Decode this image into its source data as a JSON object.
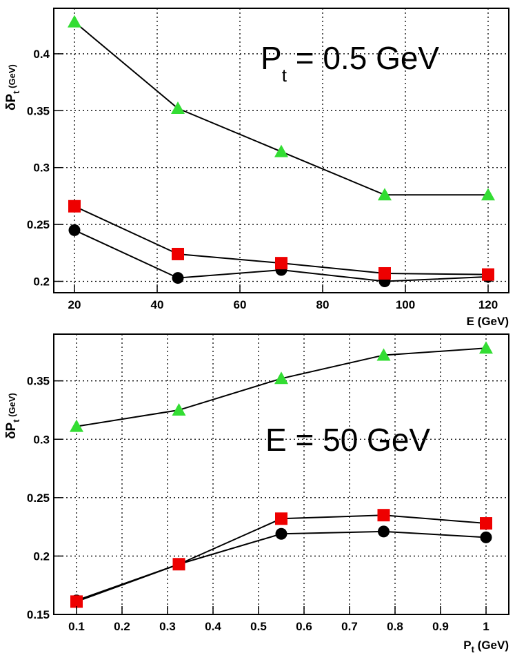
{
  "chart_data": [
    {
      "type": "line",
      "panel": "top",
      "annotation": {
        "main": "P",
        "sub": "t",
        "rest": " = 0.5 GeV"
      },
      "xlabel": "E (GeV)",
      "ylabel": {
        "main": "δP",
        "sub": "t",
        "unit": " (GeV)"
      },
      "xlim": [
        15,
        125
      ],
      "ylim": [
        0.19,
        0.44
      ],
      "xticks": [
        20,
        40,
        60,
        80,
        100,
        120
      ],
      "yticks": [
        0.2,
        0.25,
        0.3,
        0.35,
        0.4
      ],
      "x": [
        20,
        45,
        70,
        95,
        120
      ],
      "series": [
        {
          "name": "triangle",
          "marker": "triangle",
          "color": "#33dd33",
          "values": [
            0.428,
            0.352,
            0.314,
            0.276,
            0.276
          ]
        },
        {
          "name": "square",
          "marker": "square",
          "color": "#ee0000",
          "values": [
            0.266,
            0.224,
            0.216,
            0.207,
            0.206
          ]
        },
        {
          "name": "circle",
          "marker": "circle",
          "color": "#000000",
          "values": [
            0.245,
            0.203,
            0.21,
            0.2,
            0.204
          ]
        }
      ],
      "grid": true
    },
    {
      "type": "line",
      "panel": "bottom",
      "annotation": {
        "main": "E = 50 GeV"
      },
      "xlabel": {
        "main": "P",
        "sub": "t",
        "unit": " (GeV)"
      },
      "ylabel": {
        "main": "δP",
        "sub": "t",
        "unit": " (GeV)"
      },
      "xlim": [
        0.05,
        1.05
      ],
      "ylim": [
        0.15,
        0.39
      ],
      "xticks": [
        0.1,
        0.2,
        0.3,
        0.4,
        0.5,
        0.6,
        0.7,
        0.8,
        0.9,
        1
      ],
      "yticks": [
        0.15,
        0.2,
        0.25,
        0.3,
        0.35
      ],
      "x": [
        0.1,
        0.325,
        0.55,
        0.775,
        1.0
      ],
      "series": [
        {
          "name": "triangle",
          "marker": "triangle",
          "color": "#33dd33",
          "values": [
            0.311,
            0.325,
            0.352,
            0.372,
            0.378
          ]
        },
        {
          "name": "square",
          "marker": "square",
          "color": "#ee0000",
          "values": [
            0.161,
            0.193,
            0.232,
            0.235,
            0.228
          ]
        },
        {
          "name": "circle",
          "marker": "circle",
          "color": "#000000",
          "values": [
            0.162,
            0.193,
            0.219,
            0.221,
            0.216
          ]
        }
      ],
      "grid": true
    }
  ]
}
